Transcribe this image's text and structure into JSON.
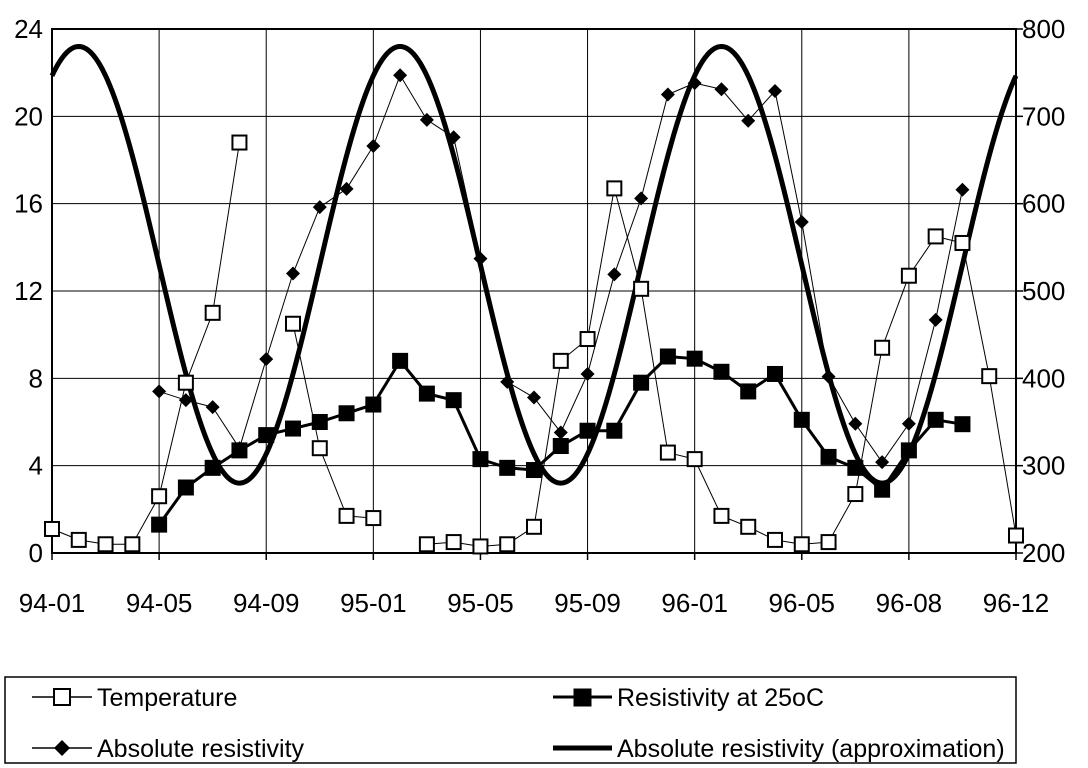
{
  "chart_data": {
    "type": "line",
    "x_labels": [
      "94-01",
      "94-05",
      "94-09",
      "95-01",
      "95-05",
      "95-09",
      "96-01",
      "96-05",
      "96-08",
      "96-12"
    ],
    "y_left": {
      "ylim": [
        0,
        24
      ],
      "ticks": [
        0,
        4,
        8,
        12,
        16,
        20,
        24
      ]
    },
    "y_right": {
      "ylim": [
        200,
        800
      ],
      "ticks": [
        200,
        300,
        400,
        500,
        600,
        700,
        800
      ]
    },
    "grid": true,
    "legend_position": "bottom",
    "series": [
      {
        "name": "Temperature",
        "axis": "left",
        "marker": "open-square",
        "points": [
          {
            "x": 0,
            "y": 1.1
          },
          {
            "x": 1,
            "y": 0.6
          },
          {
            "x": 2,
            "y": 0.4
          },
          {
            "x": 3,
            "y": 0.4
          },
          {
            "x": 4,
            "y": 2.6
          },
          {
            "x": 5,
            "y": 7.8
          },
          {
            "x": 6,
            "y": 11.0
          },
          {
            "x": 7,
            "y": 18.8
          },
          {
            "x": 9,
            "y": 10.5
          },
          {
            "x": 10,
            "y": 4.8
          },
          {
            "x": 11,
            "y": 1.7
          },
          {
            "x": 12,
            "y": 1.6
          },
          {
            "x": 14,
            "y": 0.4
          },
          {
            "x": 15,
            "y": 0.5
          },
          {
            "x": 16,
            "y": 0.3
          },
          {
            "x": 17,
            "y": 0.4
          },
          {
            "x": 18,
            "y": 1.2
          },
          {
            "x": 19,
            "y": 8.8
          },
          {
            "x": 20,
            "y": 9.8
          },
          {
            "x": 21,
            "y": 16.7
          },
          {
            "x": 22,
            "y": 12.1
          },
          {
            "x": 23,
            "y": 4.6
          },
          {
            "x": 24,
            "y": 4.3
          },
          {
            "x": 25,
            "y": 1.7
          },
          {
            "x": 26,
            "y": 1.2
          },
          {
            "x": 27,
            "y": 0.6
          },
          {
            "x": 28,
            "y": 0.4
          },
          {
            "x": 29,
            "y": 0.5
          },
          {
            "x": 30,
            "y": 2.7
          },
          {
            "x": 31,
            "y": 9.4
          },
          {
            "x": 32,
            "y": 12.7
          },
          {
            "x": 33,
            "y": 14.5
          },
          {
            "x": 34,
            "y": 14.2
          },
          {
            "x": 35,
            "y": 8.1
          },
          {
            "x": 36,
            "y": 0.8
          }
        ]
      },
      {
        "name": "Resistivity at 25oC",
        "axis": "left",
        "marker": "filled-square",
        "points": [
          {
            "x": 4,
            "y": 1.3
          },
          {
            "x": 5,
            "y": 3.0
          },
          {
            "x": 6,
            "y": 3.9
          },
          {
            "x": 7,
            "y": 4.7
          },
          {
            "x": 8,
            "y": 5.4
          },
          {
            "x": 9,
            "y": 5.7
          },
          {
            "x": 10,
            "y": 6.0
          },
          {
            "x": 11,
            "y": 6.4
          },
          {
            "x": 12,
            "y": 6.8
          },
          {
            "x": 13,
            "y": 8.8
          },
          {
            "x": 14,
            "y": 7.3
          },
          {
            "x": 15,
            "y": 7.0
          },
          {
            "x": 16,
            "y": 4.3
          },
          {
            "x": 17,
            "y": 3.9
          },
          {
            "x": 18,
            "y": 3.8
          },
          {
            "x": 19,
            "y": 4.9
          },
          {
            "x": 20,
            "y": 5.6
          },
          {
            "x": 21,
            "y": 5.6
          },
          {
            "x": 22,
            "y": 7.8
          },
          {
            "x": 23,
            "y": 9.0
          },
          {
            "x": 24,
            "y": 8.9
          },
          {
            "x": 25,
            "y": 8.3
          },
          {
            "x": 26,
            "y": 7.4
          },
          {
            "x": 27,
            "y": 8.2
          },
          {
            "x": 28,
            "y": 6.1
          },
          {
            "x": 29,
            "y": 4.4
          },
          {
            "x": 30,
            "y": 3.9
          },
          {
            "x": 31,
            "y": 2.9
          },
          {
            "x": 32,
            "y": 4.7
          },
          {
            "x": 33,
            "y": 6.1
          },
          {
            "x": 34,
            "y": 5.9
          }
        ]
      },
      {
        "name": "Absolute resistivity",
        "axis": "right",
        "marker": "filled-diamond",
        "points": [
          {
            "x": 4,
            "y": 385
          },
          {
            "x": 5,
            "y": 375
          },
          {
            "x": 6,
            "y": 367
          },
          {
            "x": 7,
            "y": 320
          },
          {
            "x": 8,
            "y": 422
          },
          {
            "x": 9,
            "y": 520
          },
          {
            "x": 10,
            "y": 596
          },
          {
            "x": 11,
            "y": 617
          },
          {
            "x": 12,
            "y": 666
          },
          {
            "x": 13,
            "y": 747
          },
          {
            "x": 14,
            "y": 696
          },
          {
            "x": 15,
            "y": 676
          },
          {
            "x": 16,
            "y": 537
          },
          {
            "x": 17,
            "y": 396
          },
          {
            "x": 18,
            "y": 378
          },
          {
            "x": 19,
            "y": 338
          },
          {
            "x": 20,
            "y": 405
          },
          {
            "x": 21,
            "y": 519
          },
          {
            "x": 22,
            "y": 606
          },
          {
            "x": 23,
            "y": 725
          },
          {
            "x": 24,
            "y": 738
          },
          {
            "x": 25,
            "y": 731
          },
          {
            "x": 26,
            "y": 695
          },
          {
            "x": 27,
            "y": 729
          },
          {
            "x": 28,
            "y": 579
          },
          {
            "x": 29,
            "y": 402
          },
          {
            "x": 30,
            "y": 348
          },
          {
            "x": 31,
            "y": 304
          },
          {
            "x": 32,
            "y": 348
          },
          {
            "x": 33,
            "y": 467
          },
          {
            "x": 34,
            "y": 616
          }
        ]
      },
      {
        "name": "Absolute resistivity (approximation)",
        "axis": "right",
        "marker": "none",
        "line_width": 5,
        "curve": {
          "mean": 530,
          "amplitude": 250,
          "period": 12,
          "peak_x": 1
        }
      }
    ]
  }
}
